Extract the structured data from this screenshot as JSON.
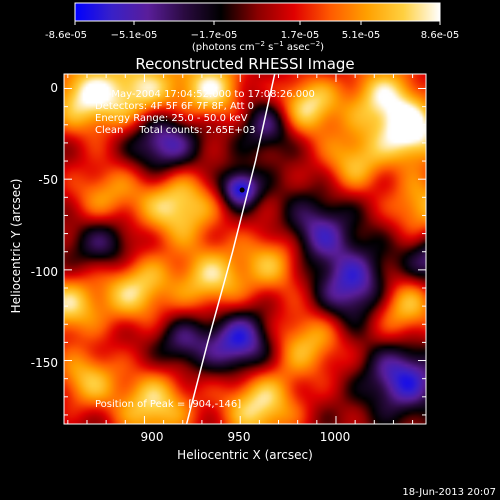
{
  "chart_data": {
    "type": "heatmap",
    "title": "Reconstructed RHESSI Image",
    "colorbar": {
      "ticks": [
        "-8.6e-05",
        "−5.1e-05",
        "−1.7e-05",
        "1.7e-05",
        "5.1e-05",
        "8.6e-05"
      ],
      "units_prefix": "(photons cm",
      "units_sup1": "−2",
      "units_mid": " s",
      "units_sup2": "−1",
      "units_mid2": " asec",
      "units_sup3": "−2",
      "units_suffix": ")",
      "range": [
        -8.6e-05,
        8.6e-05
      ],
      "colors": [
        "#0000ff",
        "#3820c8",
        "#5a1e9a",
        "#2a0a40",
        "#000000",
        "#8a0000",
        "#e00000",
        "#ff5a00",
        "#ffa000",
        "#ffd040",
        "#ffffff"
      ]
    },
    "xlabel": "Heliocentric X (arcsec)",
    "ylabel": "Heliocentric Y (arcsec)",
    "xlim": [
      858,
      1047
    ],
    "ylim": [
      -185,
      8
    ],
    "xticks": [
      900,
      950,
      1000
    ],
    "yticks": [
      0,
      -50,
      -100,
      -150
    ],
    "annotations": [
      "17-May-2004 17:04:52.000 to 17:08:26.000",
      "Detectors: 4F 5F 6F 7F 8F, Att 0",
      "Energy Range: 25.0 - 50.0 keV",
      "Clean     Total counts: 2.65E+03"
    ],
    "peak_label": "Position of Peak = [904,-146]",
    "peak": [
      904,
      -146
    ],
    "limb_marker": [
      951,
      -56
    ],
    "limb_curve": [
      [
        968,
        8
      ],
      [
        958,
        -40
      ],
      [
        946,
        -90
      ],
      [
        933,
        -140
      ],
      [
        922,
        -185
      ]
    ],
    "blobs": [
      [
        870,
        -5,
        14,
        0.95
      ],
      [
        900,
        0,
        14,
        0.8
      ],
      [
        935,
        0,
        12,
        0.9
      ],
      [
        985,
        -10,
        12,
        0.9
      ],
      [
        1040,
        -25,
        12,
        1.0
      ],
      [
        1025,
        -5,
        14,
        0.85
      ],
      [
        1010,
        -40,
        12,
        0.7
      ],
      [
        918,
        -65,
        14,
        0.9
      ],
      [
        880,
        -60,
        14,
        0.6
      ],
      [
        860,
        -120,
        12,
        0.8
      ],
      [
        895,
        -110,
        14,
        0.85
      ],
      [
        935,
        -105,
        13,
        0.8
      ],
      [
        968,
        -95,
        13,
        0.7
      ],
      [
        1035,
        -120,
        13,
        0.8
      ],
      [
        985,
        -140,
        14,
        0.7
      ],
      [
        960,
        -175,
        14,
        0.9
      ],
      [
        905,
        -175,
        14,
        0.85
      ],
      [
        870,
        -160,
        12,
        0.7
      ],
      [
        1045,
        -65,
        12,
        0.7
      ],
      [
        950,
        -55,
        7,
        -1.0
      ],
      [
        910,
        -30,
        12,
        -0.8
      ],
      [
        990,
        -80,
        13,
        -0.7
      ],
      [
        1010,
        -110,
        14,
        -0.85
      ],
      [
        1035,
        -160,
        13,
        -0.85
      ],
      [
        950,
        -140,
        12,
        -0.9
      ],
      [
        880,
        -85,
        12,
        -0.6
      ],
      [
        965,
        -20,
        10,
        -0.6
      ],
      [
        1050,
        -95,
        10,
        -0.6
      ],
      [
        920,
        -140,
        10,
        -0.5
      ]
    ]
  },
  "footer": {
    "timestamp": "18-Jun-2013 20:07"
  }
}
